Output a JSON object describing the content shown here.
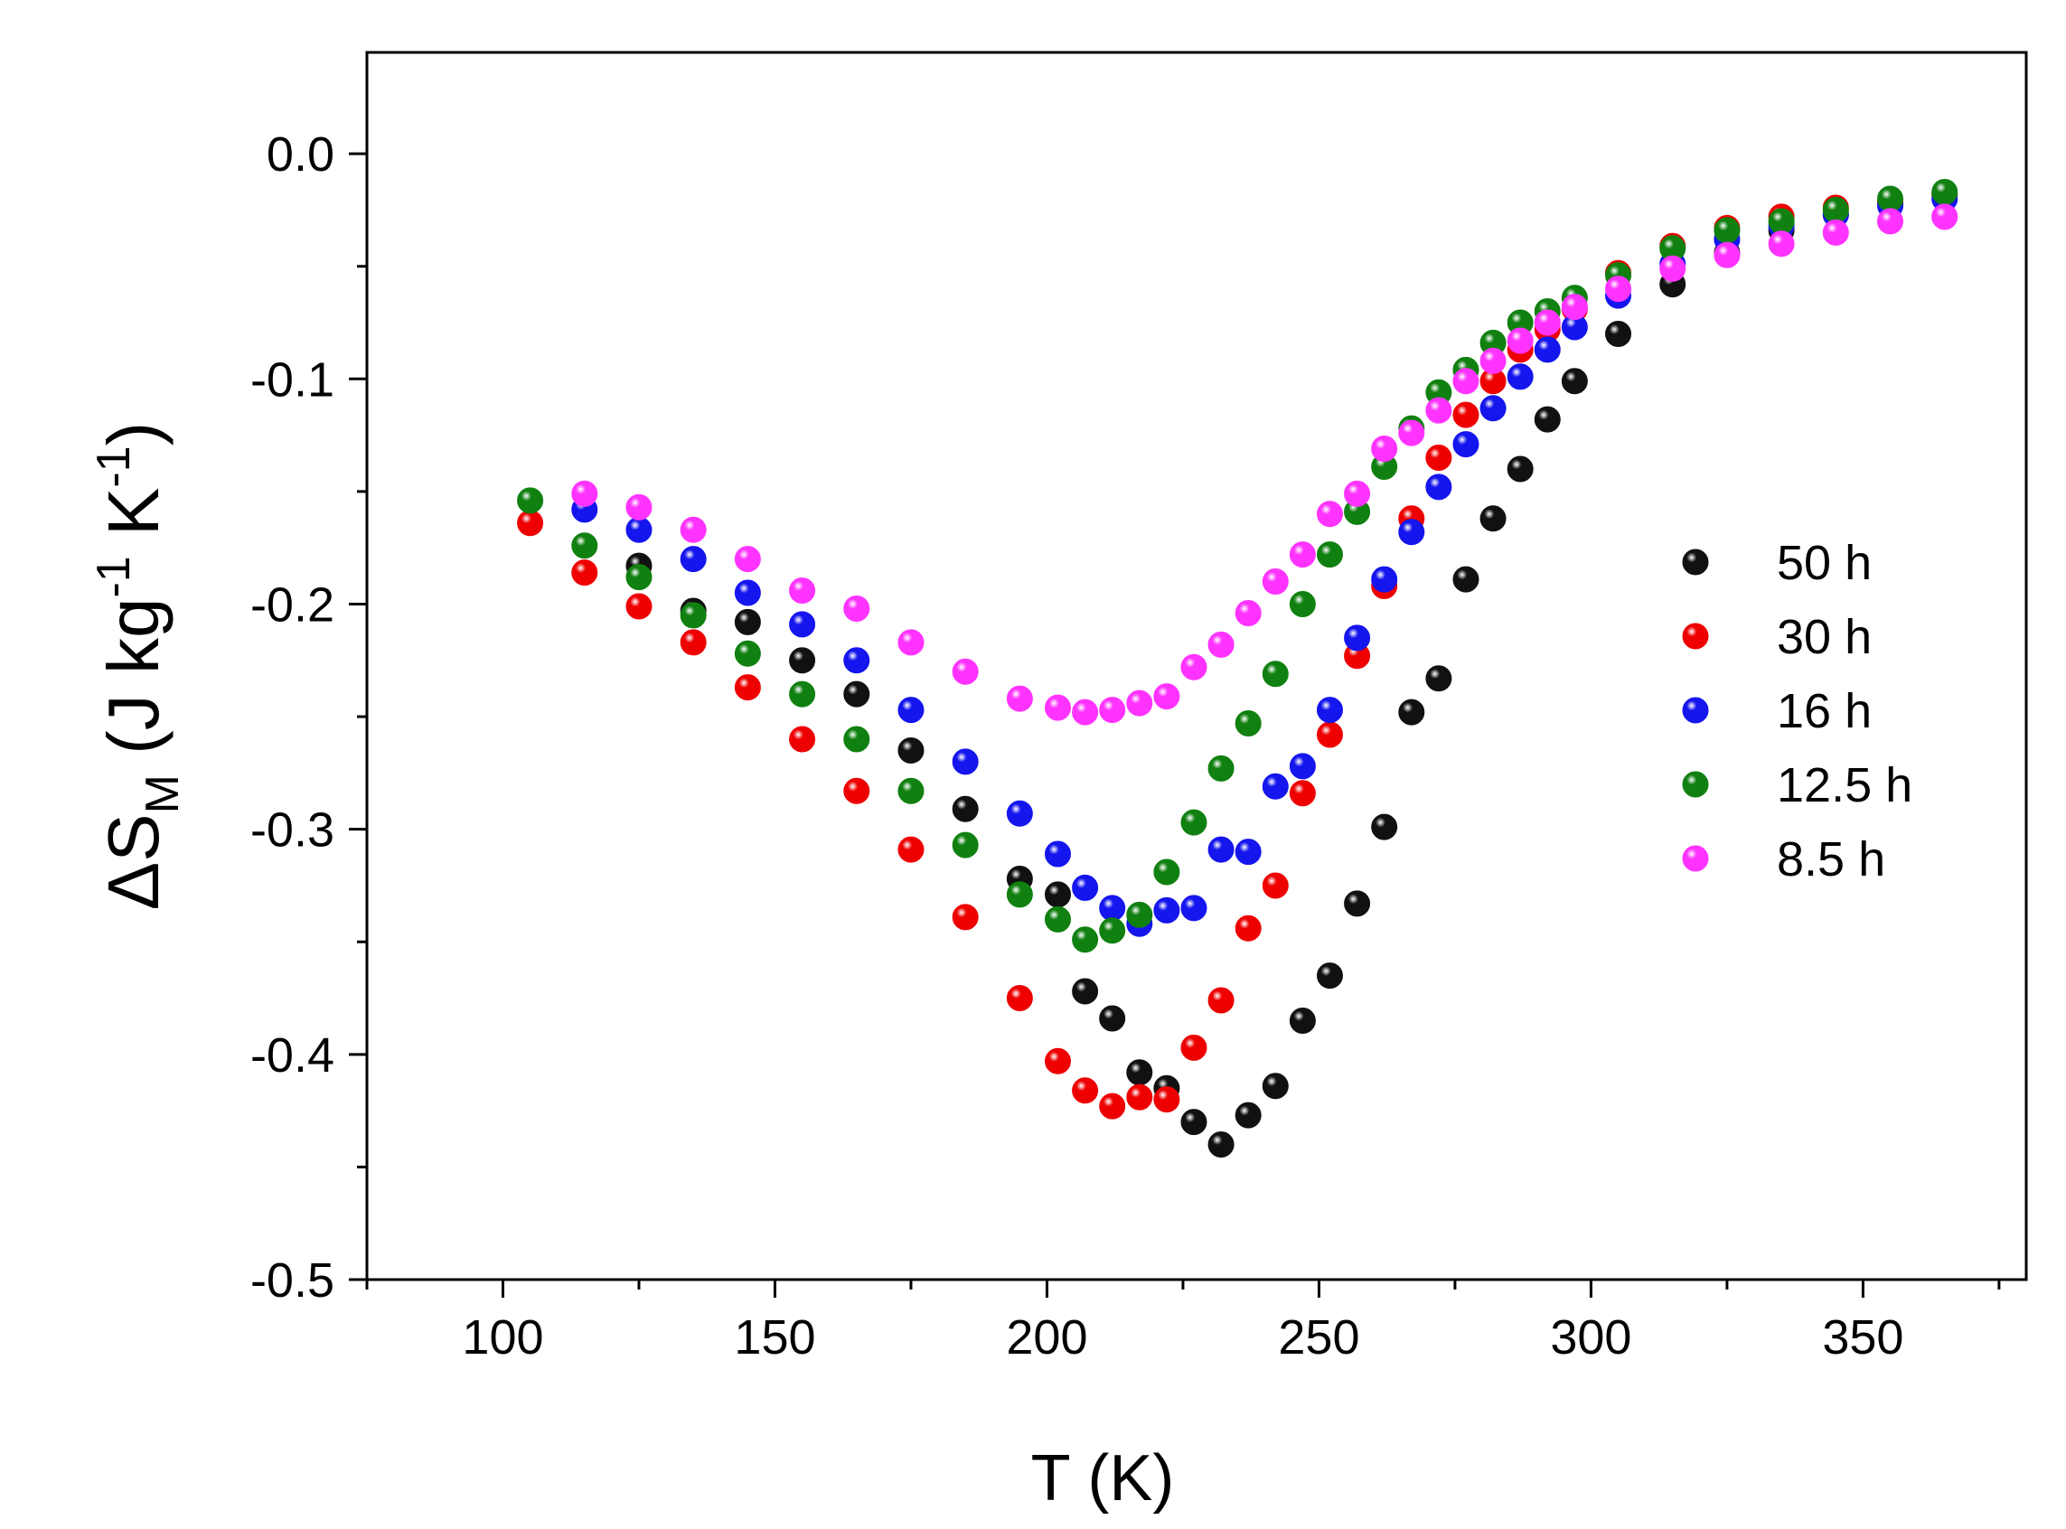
{
  "chart_data": {
    "type": "scatter",
    "title": "",
    "xlabel": "T (K)",
    "ylabel": {
      "delta": "Δ",
      "symbol": "S",
      "symbol_sub": "M",
      "unit_open": " (J kg",
      "sup1": "-1",
      "unit_mid": " K",
      "sup2": "-1",
      "unit_close": ")"
    },
    "xlim": [
      75,
      380
    ],
    "ylim": [
      -0.5,
      0.045
    ],
    "x_ticks": [
      100,
      150,
      200,
      250,
      300,
      350
    ],
    "x_tick_labels": [
      "100",
      "150",
      "200",
      "250",
      "300",
      "350"
    ],
    "x_minor_ticks": [
      75,
      125,
      175,
      225,
      275,
      325,
      375
    ],
    "y_ticks": [
      0.0,
      -0.1,
      -0.2,
      -0.3,
      -0.4,
      -0.5
    ],
    "y_tick_labels": [
      "0.0",
      "-0.1",
      "-0.2",
      "-0.3",
      "-0.4",
      "-0.5"
    ],
    "y_minor_ticks": [
      -0.05,
      -0.15,
      -0.25,
      -0.35,
      -0.45
    ],
    "legend_position": "right",
    "series": [
      {
        "name": "50 h",
        "color": "#111111",
        "x": [
          125,
          135,
          145,
          155,
          165,
          175,
          185,
          195,
          202,
          207,
          212,
          217,
          222,
          227,
          232,
          237,
          242,
          247,
          252,
          257,
          262,
          267,
          272,
          277,
          282,
          287,
          292,
          297,
          305,
          315,
          325,
          335,
          345,
          355,
          365
        ],
        "y": [
          -0.183,
          -0.203,
          -0.208,
          -0.225,
          -0.24,
          -0.265,
          -0.291,
          -0.322,
          -0.329,
          -0.372,
          -0.384,
          -0.408,
          -0.415,
          -0.43,
          -0.44,
          -0.427,
          -0.414,
          -0.385,
          -0.365,
          -0.333,
          -0.299,
          -0.248,
          -0.233,
          -0.189,
          -0.162,
          -0.14,
          -0.118,
          -0.101,
          -0.08,
          -0.058,
          -0.044,
          -0.034,
          -0.027,
          -0.022,
          -0.018
        ]
      },
      {
        "name": "30 h",
        "color": "#ee0000",
        "x": [
          105,
          115,
          125,
          135,
          145,
          155,
          165,
          175,
          185,
          195,
          202,
          207,
          212,
          217,
          222,
          227,
          232,
          237,
          242,
          247,
          252,
          257,
          262,
          267,
          272,
          277,
          282,
          287,
          292,
          297,
          305,
          315,
          325,
          335,
          345,
          355,
          365
        ],
        "y": [
          -0.164,
          -0.186,
          -0.201,
          -0.217,
          -0.237,
          -0.26,
          -0.283,
          -0.309,
          -0.339,
          -0.375,
          -0.403,
          -0.416,
          -0.423,
          -0.419,
          -0.42,
          -0.397,
          -0.376,
          -0.344,
          -0.325,
          -0.284,
          -0.258,
          -0.223,
          -0.192,
          -0.162,
          -0.135,
          -0.116,
          -0.101,
          -0.087,
          -0.078,
          -0.069,
          -0.053,
          -0.041,
          -0.033,
          -0.028,
          -0.024,
          -0.021,
          -0.018
        ]
      },
      {
        "name": "16 h",
        "color": "#1515ee",
        "x": [
          115,
          125,
          135,
          145,
          155,
          165,
          175,
          185,
          195,
          202,
          207,
          212,
          217,
          222,
          227,
          232,
          237,
          242,
          247,
          252,
          257,
          262,
          267,
          272,
          277,
          282,
          287,
          292,
          297,
          305,
          315,
          325,
          335,
          345,
          355,
          365
        ],
        "y": [
          -0.158,
          -0.167,
          -0.18,
          -0.195,
          -0.209,
          -0.225,
          -0.247,
          -0.27,
          -0.293,
          -0.311,
          -0.326,
          -0.335,
          -0.342,
          -0.336,
          -0.335,
          -0.309,
          -0.31,
          -0.281,
          -0.272,
          -0.247,
          -0.215,
          -0.189,
          -0.168,
          -0.148,
          -0.129,
          -0.113,
          -0.099,
          -0.087,
          -0.077,
          -0.063,
          -0.049,
          -0.038,
          -0.032,
          -0.027,
          -0.023,
          -0.02
        ]
      },
      {
        "name": "12.5 h",
        "color": "#108010",
        "x": [
          105,
          115,
          125,
          135,
          145,
          155,
          165,
          175,
          185,
          195,
          202,
          207,
          212,
          217,
          222,
          227,
          232,
          237,
          242,
          247,
          252,
          257,
          262,
          267,
          272,
          277,
          282,
          287,
          292,
          297,
          305,
          315,
          325,
          335,
          345,
          355,
          365
        ],
        "y": [
          -0.154,
          -0.174,
          -0.188,
          -0.205,
          -0.222,
          -0.24,
          -0.26,
          -0.283,
          -0.307,
          -0.329,
          -0.34,
          -0.349,
          -0.345,
          -0.338,
          -0.319,
          -0.297,
          -0.273,
          -0.253,
          -0.231,
          -0.2,
          -0.178,
          -0.159,
          -0.139,
          -0.122,
          -0.106,
          -0.096,
          -0.084,
          -0.075,
          -0.07,
          -0.064,
          -0.054,
          -0.042,
          -0.034,
          -0.03,
          -0.025,
          -0.02,
          -0.017
        ]
      },
      {
        "name": "8.5 h",
        "color": "#ff33ff",
        "x": [
          115,
          125,
          135,
          145,
          155,
          165,
          175,
          185,
          195,
          202,
          207,
          212,
          217,
          222,
          227,
          232,
          237,
          242,
          247,
          252,
          257,
          262,
          267,
          272,
          277,
          282,
          287,
          292,
          297,
          305,
          315,
          325,
          335,
          345,
          355,
          365
        ],
        "y": [
          -0.151,
          -0.157,
          -0.167,
          -0.18,
          -0.194,
          -0.202,
          -0.217,
          -0.23,
          -0.242,
          -0.246,
          -0.248,
          -0.247,
          -0.244,
          -0.241,
          -0.228,
          -0.218,
          -0.204,
          -0.19,
          -0.178,
          -0.16,
          -0.151,
          -0.131,
          -0.124,
          -0.114,
          -0.101,
          -0.092,
          -0.083,
          -0.075,
          -0.068,
          -0.06,
          -0.051,
          -0.045,
          -0.04,
          -0.035,
          -0.03,
          -0.028
        ]
      }
    ]
  }
}
